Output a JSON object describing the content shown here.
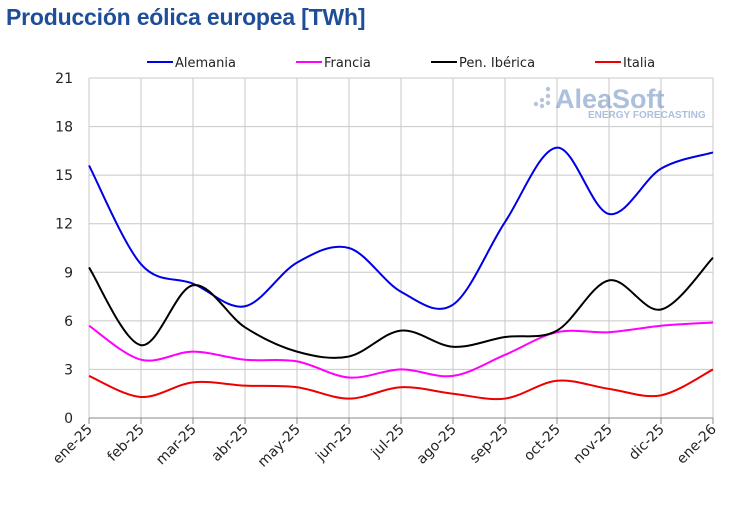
{
  "chart_data": {
    "type": "line",
    "title": "Producción eólica europea [TWh]",
    "xlabel": "",
    "ylabel": "",
    "ylim": [
      0,
      21
    ],
    "yticks": [
      0,
      3,
      6,
      9,
      12,
      15,
      18,
      21
    ],
    "grid": true,
    "legend_position": "top",
    "categories": [
      "ene-25",
      "feb-25",
      "mar-25",
      "abr-25",
      "may-25",
      "jun-25",
      "jul-25",
      "ago-25",
      "sep-25",
      "oct-25",
      "nov-25",
      "dic-25",
      "ene-26"
    ],
    "series": [
      {
        "name": "Alemania",
        "color": "#0000e6",
        "values": [
          15.6,
          9.5,
          8.3,
          6.9,
          9.6,
          10.5,
          7.8,
          7.0,
          12.1,
          16.7,
          12.6,
          15.4,
          16.4
        ]
      },
      {
        "name": "Francia",
        "color": "#ff00ff",
        "values": [
          5.7,
          3.6,
          4.1,
          3.6,
          3.5,
          2.5,
          3.0,
          2.6,
          3.9,
          5.3,
          5.3,
          5.7,
          5.9
        ]
      },
      {
        "name": "Pen. Ibérica",
        "color": "#000000",
        "values": [
          9.3,
          4.5,
          8.2,
          5.6,
          4.1,
          3.8,
          5.4,
          4.4,
          5.0,
          5.4,
          8.5,
          6.7,
          9.9
        ]
      },
      {
        "name": "Italia",
        "color": "#ee0000",
        "values": [
          2.6,
          1.3,
          2.2,
          2.0,
          1.9,
          1.2,
          1.9,
          1.5,
          1.2,
          2.3,
          1.8,
          1.4,
          3.0
        ]
      }
    ]
  },
  "logo": {
    "name": "AleaSoft",
    "tagline": "ENERGY FORECASTING"
  }
}
